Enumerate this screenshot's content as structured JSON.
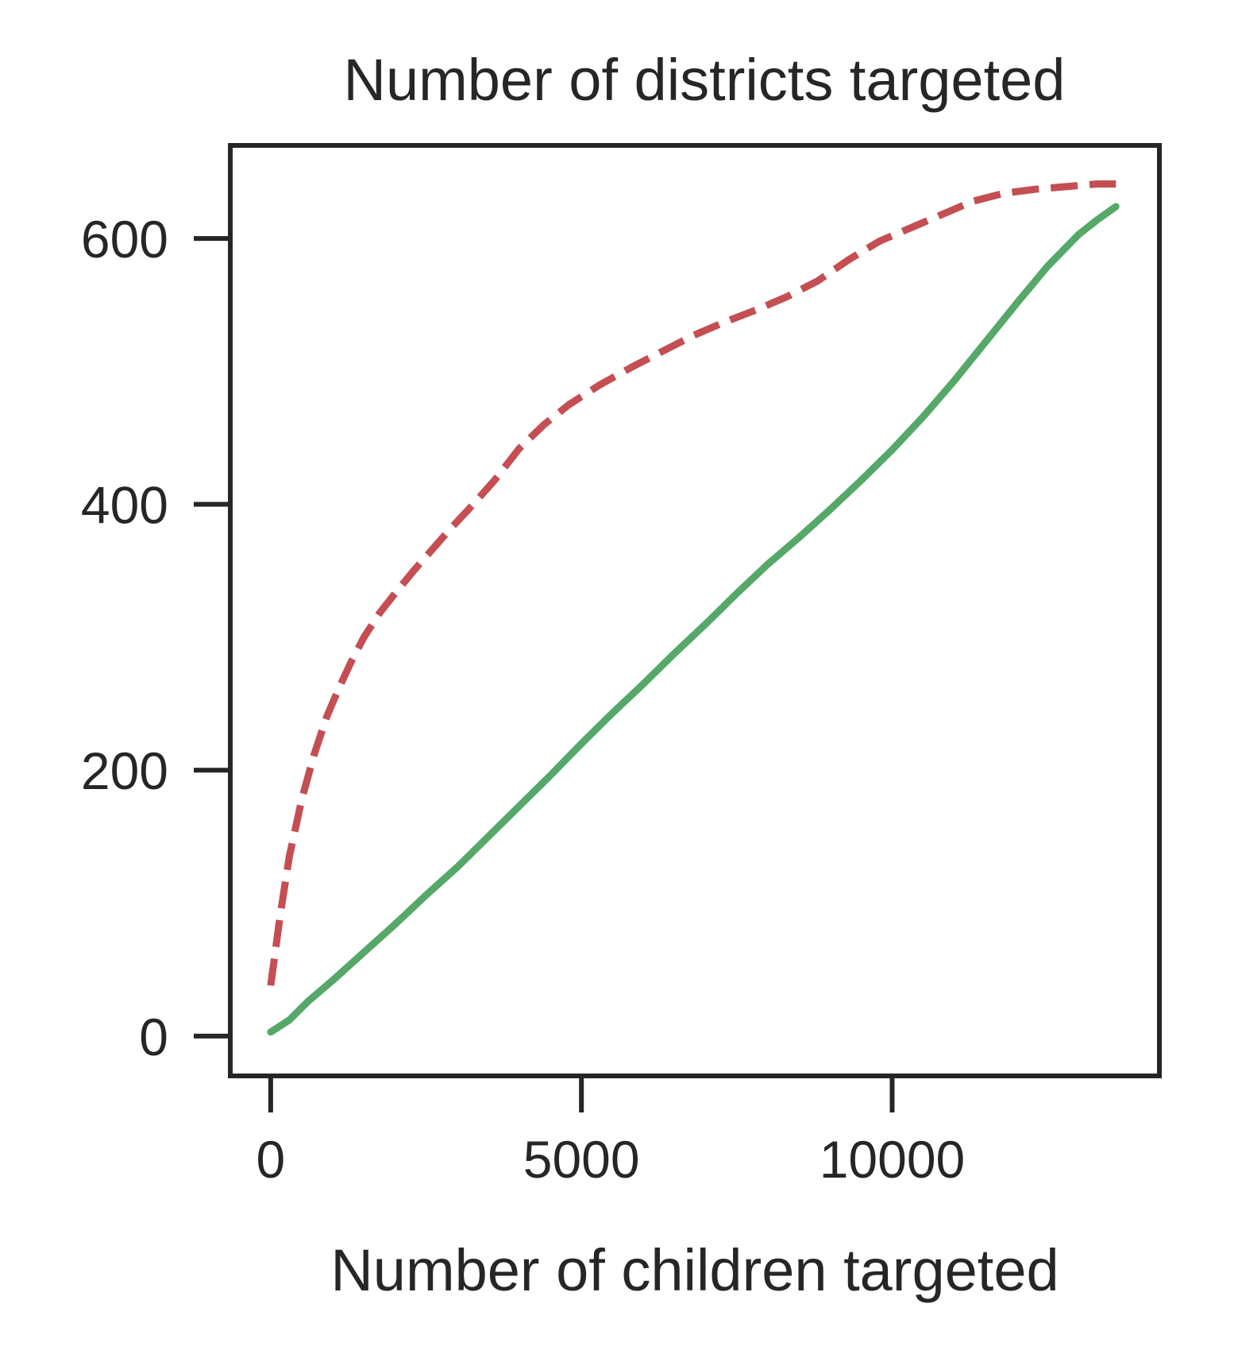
{
  "chart_data": {
    "type": "line",
    "title": "Number of districts targeted",
    "xlabel": "Number of children targeted",
    "ylabel": "",
    "xlim": [
      -650,
      14300
    ],
    "ylim": [
      -30,
      670
    ],
    "xticks": [
      0,
      5000,
      10000
    ],
    "yticks": [
      0,
      200,
      400,
      600
    ],
    "grid": false,
    "legend": null,
    "series": [
      {
        "style": "dashed",
        "color": "#c44e52",
        "x": [
          0,
          150,
          300,
          500,
          700,
          900,
          1100,
          1300,
          1500,
          1750,
          2000,
          2300,
          2600,
          2900,
          3200,
          3600,
          4000,
          4400,
          4800,
          5300,
          5800,
          6300,
          6800,
          7300,
          7800,
          8300,
          8800,
          9300,
          9800,
          10300,
          10800,
          11300,
          11800,
          12300,
          12800,
          13300,
          13600
        ],
        "y": [
          38,
          90,
          135,
          178,
          212,
          240,
          262,
          282,
          300,
          318,
          333,
          350,
          366,
          382,
          397,
          418,
          442,
          460,
          475,
          490,
          503,
          515,
          527,
          537,
          546,
          556,
          568,
          584,
          598,
          608,
          618,
          628,
          634,
          637,
          639,
          641,
          641
        ]
      },
      {
        "style": "solid",
        "color": "#55a868",
        "x": [
          0,
          300,
          600,
          1000,
          1500,
          2000,
          2500,
          3000,
          3500,
          4000,
          4500,
          5000,
          5500,
          6000,
          6500,
          7000,
          7500,
          8000,
          8500,
          9000,
          9500,
          10000,
          10500,
          11000,
          11500,
          12000,
          12500,
          13000,
          13300,
          13600
        ],
        "y": [
          3,
          12,
          26,
          42,
          63,
          84,
          106,
          127,
          150,
          173,
          196,
          220,
          243,
          265,
          288,
          310,
          333,
          355,
          375,
          396,
          418,
          441,
          466,
          493,
          522,
          551,
          579,
          603,
          614,
          624
        ]
      }
    ]
  }
}
